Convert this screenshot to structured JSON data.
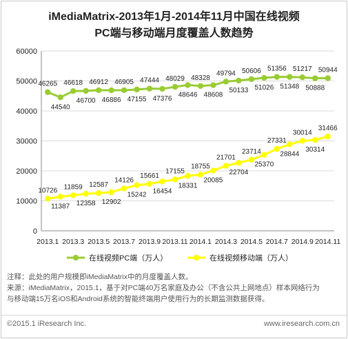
{
  "title_line1": "iMediaMatrix-2013年1月-2014年11月中国在线视频",
  "title_line2": "PC端与移动端月度覆盖人数趋势",
  "colors": {
    "pc_line": "#99cc33",
    "mobile_line": "#ffff00",
    "grid": "#d9d9d9",
    "axis_text": "#222222",
    "label_text": "#222222"
  },
  "chart_data": {
    "type": "line",
    "categories": [
      "2013.1",
      "2013.2",
      "2013.3",
      "2013.4",
      "2013.5",
      "2013.6",
      "2013.7",
      "2013.8",
      "2013.9",
      "2013.10",
      "2013.11",
      "2013.12",
      "2014.1",
      "2014.2",
      "2014.3",
      "2014.4",
      "2014.5",
      "2014.6",
      "2014.7",
      "2014.8",
      "2014.9",
      "2014.10",
      "2014.11"
    ],
    "x_tick_labels": [
      "2013.1",
      "2013.3",
      "2013.5",
      "2013.7",
      "2013.9",
      "2013.11",
      "2014.1",
      "2014.3",
      "2014.5",
      "2014.7",
      "2014.9",
      "2014.11"
    ],
    "y_tick_labels": [
      "0",
      "10000",
      "20000",
      "30000",
      "40000",
      "50000",
      "60000"
    ],
    "ylim": [
      0,
      60000
    ],
    "series": [
      {
        "name": "在线视频PC端（万人）",
        "values": [
          46265,
          44540,
          46618,
          46700,
          46912,
          46886,
          46905,
          47155,
          47444,
          47376,
          48029,
          48646,
          48328,
          48608,
          49794,
          50133,
          50606,
          51026,
          51356,
          51348,
          51217,
          50888,
          50944
        ]
      },
      {
        "name": "在线视频移动端（万人）",
        "values": [
          10726,
          11387,
          11859,
          12358,
          12587,
          12902,
          14126,
          15242,
          15661,
          16454,
          17155,
          18331,
          18755,
          20085,
          21701,
          22704,
          23714,
          25370,
          27331,
          28844,
          30014,
          30314,
          31466
        ]
      }
    ],
    "legend_position": "bottom",
    "grid": true
  },
  "notes": {
    "line1": "注释：此处的用户规模即iMediaMatrix中的月度覆盖人数。",
    "line2": "来源：iMediaMatrix，2015.1，基于对PC端40万名家庭及办公（不含公共上网地点）样本网络行为",
    "line3": "与移动端15万名iOS和Android系统的智能终端用户使用行为的长期监测数据获得。"
  },
  "footer": {
    "copyright": "©2015.1 iResearch Inc.",
    "website": "www.iresearch.com.cn"
  }
}
